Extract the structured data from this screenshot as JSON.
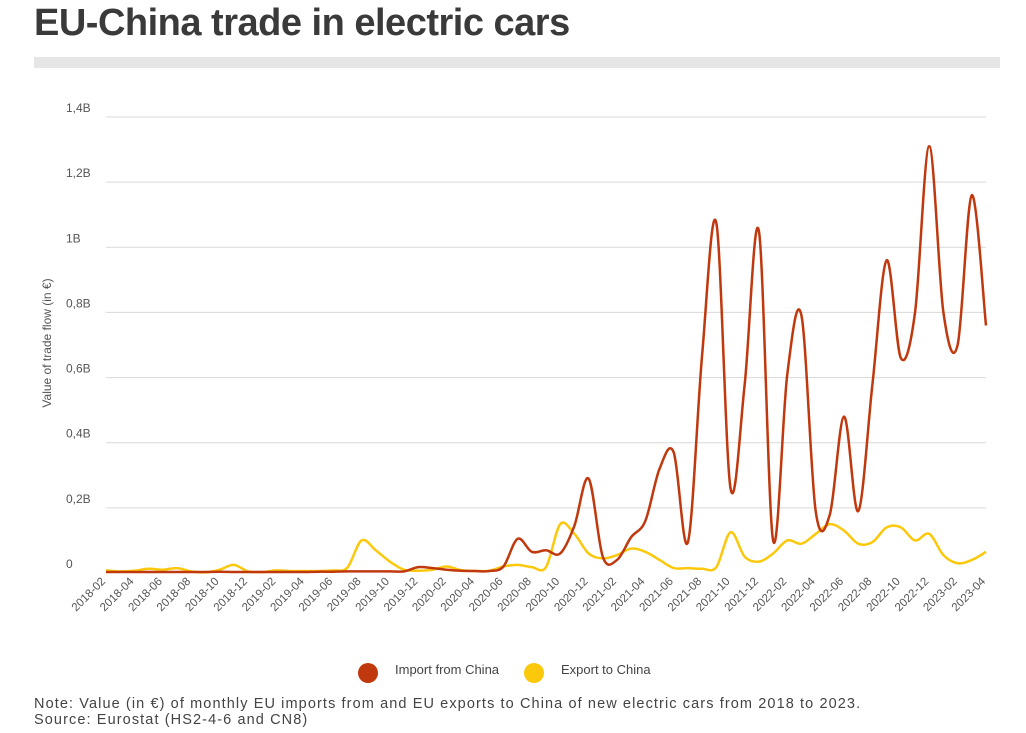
{
  "title": "EU-China trade in electric cars",
  "note": "Note: Value (in €) of monthly EU imports from and EU exports to China of new electric cars from 2018 to 2023.",
  "source": "Source: Eurostat (HS2-4-6 and CN8)",
  "colors": {
    "import": "#c0390e",
    "export": "#fcc80b",
    "grid": "#d9d9d9"
  },
  "chart_data": {
    "type": "line",
    "title": "EU-China trade in electric cars",
    "xlabel": "",
    "ylabel": "Value of trade flow (in €)",
    "ylim": [
      0,
      1.4
    ],
    "yunit": "billion €",
    "yticks": [
      {
        "value": 0,
        "label": "0"
      },
      {
        "value": 0.2,
        "label": "0,2B"
      },
      {
        "value": 0.4,
        "label": "0,4B"
      },
      {
        "value": 0.6,
        "label": "0,6B"
      },
      {
        "value": 0.8,
        "label": "0,8B"
      },
      {
        "value": 1.0,
        "label": "1B"
      },
      {
        "value": 1.2,
        "label": "1,2B"
      },
      {
        "value": 1.4,
        "label": "1,4B"
      }
    ],
    "x": [
      "2018-02",
      "2018-03",
      "2018-04",
      "2018-05",
      "2018-06",
      "2018-07",
      "2018-08",
      "2018-09",
      "2018-10",
      "2018-11",
      "2018-12",
      "2019-01",
      "2019-02",
      "2019-03",
      "2019-04",
      "2019-05",
      "2019-06",
      "2019-07",
      "2019-08",
      "2019-09",
      "2019-10",
      "2019-11",
      "2019-12",
      "2020-01",
      "2020-02",
      "2020-03",
      "2020-04",
      "2020-05",
      "2020-06",
      "2020-07",
      "2020-08",
      "2020-09",
      "2020-10",
      "2020-11",
      "2020-12",
      "2021-01",
      "2021-02",
      "2021-03",
      "2021-04",
      "2021-05",
      "2021-06",
      "2021-07",
      "2021-08",
      "2021-09",
      "2021-10",
      "2021-11",
      "2021-12",
      "2022-01",
      "2022-02",
      "2022-03",
      "2022-04",
      "2022-05",
      "2022-06",
      "2022-07",
      "2022-08",
      "2022-09",
      "2022-10",
      "2022-11",
      "2022-12",
      "2023-01",
      "2023-02",
      "2023-03",
      "2023-04"
    ],
    "xtick_labels": [
      "2018-02",
      "2018-04",
      "2018-06",
      "2018-08",
      "2018-10",
      "2018-12",
      "2019-02",
      "2019-04",
      "2019-06",
      "2019-08",
      "2019-10",
      "2019-12",
      "2020-02",
      "2020-04",
      "2020-06",
      "2020-08",
      "2020-10",
      "2020-12",
      "2021-02",
      "2021-04",
      "2021-06",
      "2021-08",
      "2021-10",
      "2021-12",
      "2022-02",
      "2022-04",
      "2022-06",
      "2022-08",
      "2022-10",
      "2022-12",
      "2023-02",
      "2023-04"
    ],
    "legend_position": "bottom-center",
    "series": [
      {
        "name": "Import from China",
        "color": "#c0390e",
        "values": [
          0.003,
          0.003,
          0.003,
          0.003,
          0.003,
          0.003,
          0.003,
          0.003,
          0.004,
          0.003,
          0.003,
          0.003,
          0.003,
          0.003,
          0.003,
          0.004,
          0.004,
          0.005,
          0.005,
          0.005,
          0.005,
          0.005,
          0.018,
          0.015,
          0.01,
          0.007,
          0.006,
          0.006,
          0.02,
          0.105,
          0.065,
          0.07,
          0.06,
          0.145,
          0.29,
          0.05,
          0.04,
          0.11,
          0.16,
          0.32,
          0.37,
          0.095,
          0.67,
          1.075,
          0.26,
          0.58,
          1.05,
          0.1,
          0.61,
          0.79,
          0.19,
          0.18,
          0.48,
          0.19,
          0.58,
          0.96,
          0.66,
          0.8,
          1.31,
          0.8,
          0.7,
          1.16,
          0.76
        ]
      },
      {
        "name": "Export to China",
        "color": "#fcc80b",
        "values": [
          0.008,
          0.005,
          0.007,
          0.013,
          0.01,
          0.015,
          0.005,
          0.002,
          0.01,
          0.025,
          0.005,
          0.003,
          0.008,
          0.006,
          0.006,
          0.006,
          0.008,
          0.016,
          0.1,
          0.07,
          0.035,
          0.01,
          0.007,
          0.01,
          0.02,
          0.009,
          0.006,
          0.007,
          0.02,
          0.025,
          0.018,
          0.018,
          0.15,
          0.12,
          0.06,
          0.045,
          0.055,
          0.075,
          0.065,
          0.04,
          0.015,
          0.015,
          0.013,
          0.018,
          0.125,
          0.05,
          0.035,
          0.06,
          0.1,
          0.09,
          0.12,
          0.15,
          0.13,
          0.09,
          0.095,
          0.14,
          0.14,
          0.1,
          0.12,
          0.055,
          0.03,
          0.04,
          0.065
        ]
      }
    ]
  }
}
